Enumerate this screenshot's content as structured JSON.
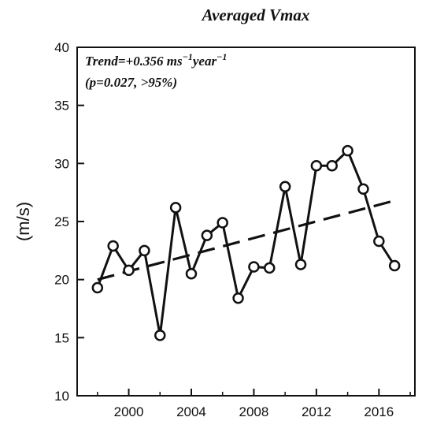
{
  "chart_data": {
    "type": "line",
    "title": "Averaged Vmax",
    "xlabel": "",
    "ylabel": "(m/s)",
    "xlim": [
      1996.7,
      2018.3
    ],
    "ylim": [
      10,
      40
    ],
    "x_ticks": [
      2000,
      2004,
      2008,
      2012,
      2016
    ],
    "x_minor_ticks": [
      1998,
      2002,
      2006,
      2010,
      2014,
      2018
    ],
    "y_ticks": [
      10,
      15,
      20,
      25,
      30,
      35,
      40
    ],
    "annotation": {
      "line1_prefix": "Trend=+0.356 ms",
      "line1_sup1": "−1",
      "line1_mid": "year",
      "line1_sup2": "−1",
      "line2": "(p=0.027, >95%)"
    },
    "series": [
      {
        "style": "solid-with-circle-markers",
        "x": [
          1998,
          1999,
          2000,
          2001,
          2002,
          2003,
          2004,
          2005,
          2006,
          2007,
          2008,
          2009,
          2010,
          2011,
          2012,
          2013,
          2014,
          2015,
          2016,
          2017
        ],
        "y": [
          19.3,
          22.9,
          20.8,
          22.5,
          15.2,
          26.2,
          20.5,
          23.8,
          24.9,
          18.4,
          21.1,
          21.0,
          28.0,
          21.3,
          29.8,
          29.8,
          31.1,
          27.8,
          23.3,
          21.2
        ]
      },
      {
        "style": "dashed-trend",
        "x": [
          1998,
          2017
        ],
        "y": [
          20.0,
          26.8
        ]
      }
    ],
    "grid": false,
    "legend": "none"
  }
}
